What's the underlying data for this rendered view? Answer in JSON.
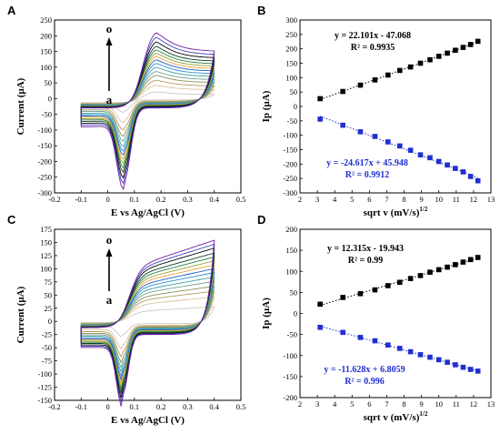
{
  "panels": {
    "A": "A",
    "B": "B",
    "C": "C",
    "D": "D"
  },
  "arrow_labels": {
    "top": "o",
    "bottom": "a"
  },
  "chart_data": [
    {
      "id": "A",
      "type": "line",
      "xlabel": "E vs Ag/AgCl (V)",
      "ylabel": "Current (µA)",
      "xlim": [
        -0.2,
        0.5
      ],
      "ylim": [
        -300,
        250
      ],
      "xticks": [
        "-0.2",
        "-0.1",
        "0",
        "0.1",
        "0.2",
        "0.3",
        "0.4",
        "0.5"
      ],
      "yticks": [
        "-300",
        "-250",
        "-200",
        "-150",
        "-100",
        "-50",
        "0",
        "50",
        "100",
        "150",
        "200",
        "250"
      ],
      "description_of_series": "15 cyclic voltammograms, labelled a to o",
      "scan_count": 15,
      "potential_window": [
        -0.1,
        0.4
      ],
      "anodic_peak_potential": 0.18,
      "cathodic_peak_potential": 0.06,
      "anodic_peak_currents": [
        33,
        55,
        72,
        88,
        101,
        115,
        128,
        140,
        151,
        162,
        173,
        185,
        200,
        215,
        230
      ],
      "cathodic_peak_currents": [
        -40,
        -70,
        -92,
        -110,
        -125,
        -140,
        -153,
        -165,
        -177,
        -190,
        -202,
        -215,
        -232,
        -248,
        -265
      ],
      "grid": false,
      "legend": "none"
    },
    {
      "id": "B",
      "type": "scatter",
      "xlabel": "sqrt v (mV/s)",
      "xlabel_sup": "1/2",
      "ylabel": "Ip (µA)",
      "xlim": [
        2,
        13
      ],
      "ylim": [
        -300,
        300
      ],
      "xticks": [
        "2",
        "3",
        "4",
        "5",
        "6",
        "7",
        "8",
        "9",
        "10",
        "11",
        "12",
        "13"
      ],
      "yticks": [
        "-300",
        "-250",
        "-200",
        "-150",
        "-100",
        "-50",
        "0",
        "50",
        "100",
        "150",
        "200",
        "250",
        "300"
      ],
      "series": [
        {
          "color": "#000000",
          "x": [
            3.16,
            4.47,
            5.48,
            6.32,
            7.07,
            7.75,
            8.37,
            8.94,
            9.49,
            10.0,
            10.49,
            10.95,
            11.4,
            11.83,
            12.25
          ],
          "y": [
            27,
            52,
            74,
            92,
            109,
            125,
            137,
            150,
            162,
            174,
            185,
            195,
            205,
            215,
            226
          ],
          "equation": "y = 22.101x - 47.068",
          "r2": "R² = 0.9935"
        },
        {
          "color": "#1f2fd1",
          "x": [
            3.16,
            4.47,
            5.48,
            6.32,
            7.07,
            7.75,
            8.37,
            8.94,
            9.49,
            10.0,
            10.49,
            10.95,
            11.4,
            11.83,
            12.25
          ],
          "y": [
            -44,
            -65,
            -88,
            -104,
            -123,
            -137,
            -152,
            -168,
            -178,
            -191,
            -203,
            -215,
            -227,
            -243,
            -258
          ],
          "equation": "y = -24.617x + 45.948",
          "r2": "R² = 0.9912"
        }
      ],
      "grid": false,
      "legend": "none"
    },
    {
      "id": "C",
      "type": "line",
      "xlabel": "E vs Ag/AgCl (V)",
      "ylabel": "Current (µA)",
      "xlim": [
        -0.2,
        0.5
      ],
      "ylim": [
        -150,
        175
      ],
      "xticks": [
        "-0.2",
        "-0.1",
        "0",
        "0.1",
        "0.2",
        "0.3",
        "0.4",
        "0.5"
      ],
      "yticks": [
        "-150",
        "-125",
        "-100",
        "-75",
        "-50",
        "-25",
        "0",
        "25",
        "50",
        "75",
        "100",
        "125",
        "150",
        "175"
      ],
      "description_of_series": "15 cyclic voltammograms, labelled a to o",
      "scan_count": 15,
      "potential_window": [
        -0.1,
        0.4
      ],
      "anodic_end_currents": [
        30,
        50,
        62,
        72,
        82,
        91,
        100,
        108,
        116,
        124,
        132,
        140,
        150,
        158,
        166
      ],
      "cathodic_peak_currents": [
        -25,
        -45,
        -58,
        -68,
        -76,
        -83,
        -90,
        -96,
        -102,
        -108,
        -113,
        -119,
        -126,
        -133,
        -140
      ],
      "grid": false,
      "legend": "none"
    },
    {
      "id": "D",
      "type": "scatter",
      "xlabel": "sqrt v (mV/s)",
      "xlabel_sup": "1/2",
      "ylabel": "Ip (µA)",
      "xlim": [
        2,
        13
      ],
      "ylim": [
        -200,
        200
      ],
      "xticks": [
        "2",
        "3",
        "4",
        "5",
        "6",
        "7",
        "8",
        "9",
        "10",
        "11",
        "12",
        "13"
      ],
      "yticks": [
        "-200",
        "-150",
        "-100",
        "-50",
        "0",
        "50",
        "100",
        "150",
        "200"
      ],
      "series": [
        {
          "color": "#000000",
          "x": [
            3.16,
            4.47,
            5.48,
            6.32,
            7.07,
            7.75,
            8.37,
            8.94,
            9.49,
            10.0,
            10.49,
            10.95,
            11.4,
            11.83,
            12.25
          ],
          "y": [
            22,
            38,
            47,
            56,
            66,
            74,
            83,
            90,
            98,
            104,
            110,
            116,
            122,
            128,
            133
          ],
          "equation": "y = 12.315x - 19.943",
          "r2": "R² = 0.99"
        },
        {
          "color": "#1f2fd1",
          "x": [
            3.16,
            4.47,
            5.48,
            6.32,
            7.07,
            7.75,
            8.37,
            8.94,
            9.49,
            10.0,
            10.49,
            10.95,
            11.4,
            11.83,
            12.25
          ],
          "y": [
            -33,
            -45,
            -57,
            -65,
            -75,
            -83,
            -91,
            -98,
            -104,
            -110,
            -116,
            -122,
            -128,
            -133,
            -137
          ],
          "equation": "y = -11.628x + 6.8059",
          "r2": "R² = 0.996"
        }
      ],
      "grid": false,
      "legend": "none"
    }
  ]
}
